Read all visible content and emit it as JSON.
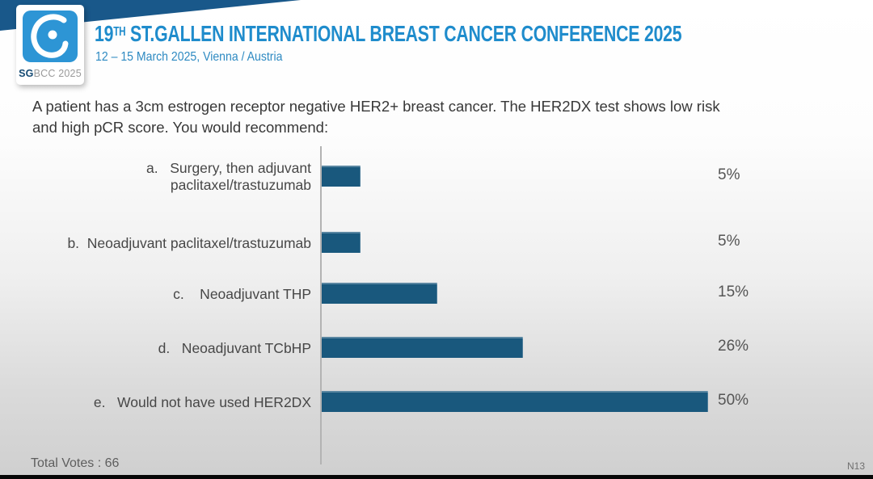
{
  "header": {
    "logo": {
      "sg": "SG",
      "rest": "BCC 2025"
    },
    "title_num": "19",
    "title_sup": "TH",
    "title_rest": " ST.GALLEN INTERNATIONAL BREAST CANCER CONFERENCE 2025",
    "subtitle": "12 – 15 March 2025, Vienna / Austria"
  },
  "question": {
    "line1": "A patient has a 3cm estrogen receptor negative HER2+ breast cancer. The HER2DX test shows low risk",
    "line2": "and high pCR score. You would recommend:"
  },
  "chart_data": {
    "type": "bar",
    "orientation": "horizontal",
    "title": "",
    "categories": [
      "a.   Surgery, then adjuvant\npaclitaxel/trastuzumab",
      "b.  Neoadjuvant paclitaxel/trastuzumab",
      "c.    Neoadjuvant THP",
      "d.   Neoadjuvant TCbHP",
      "e.   Would not have used HER2DX"
    ],
    "values": [
      5,
      5,
      15,
      26,
      50
    ],
    "value_labels": [
      "5%",
      "5%",
      "15%",
      "26%",
      "50%"
    ],
    "xlim": [
      0,
      52
    ],
    "grid": "off",
    "legend": "none",
    "bar_color": "#19587d"
  },
  "footer": {
    "total_votes": "Total Votes : 66",
    "slide_code": "N13"
  },
  "colors": {
    "accent_blue": "#1f8ccc",
    "band_blue": "#19588a",
    "logo_blue": "#2d95d5",
    "bar_blue": "#19587d"
  }
}
